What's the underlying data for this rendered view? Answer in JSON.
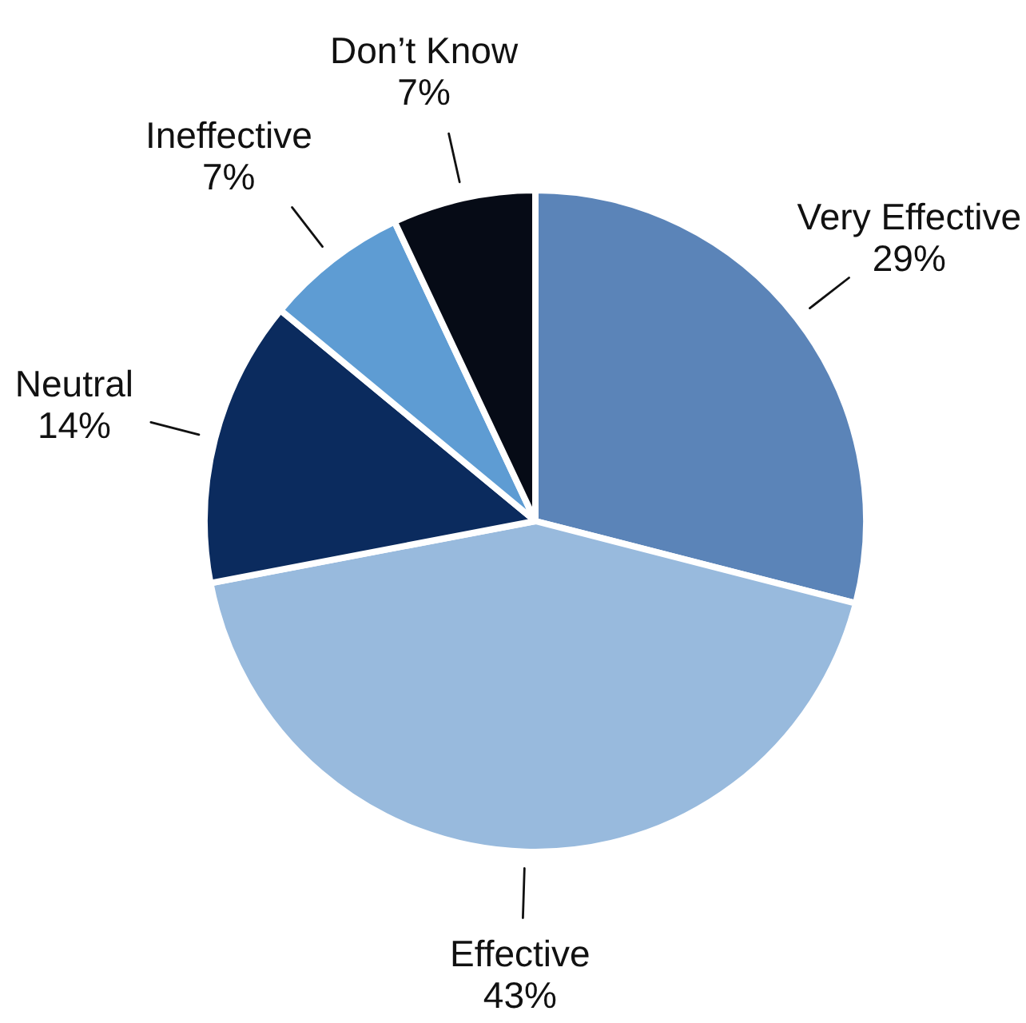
{
  "chart_data": {
    "type": "pie",
    "categories": [
      "Very Effective",
      "Effective",
      "Neutral",
      "Ineffective",
      "Don’t Know"
    ],
    "values": [
      29,
      43,
      14,
      7,
      7
    ],
    "value_labels": [
      "29%",
      "43%",
      "14%",
      "7%",
      "7%"
    ],
    "colors": [
      "#5b84b8",
      "#98badd",
      "#0b2b5e",
      "#5e9cd3",
      "#060b16"
    ],
    "legend": false
  }
}
